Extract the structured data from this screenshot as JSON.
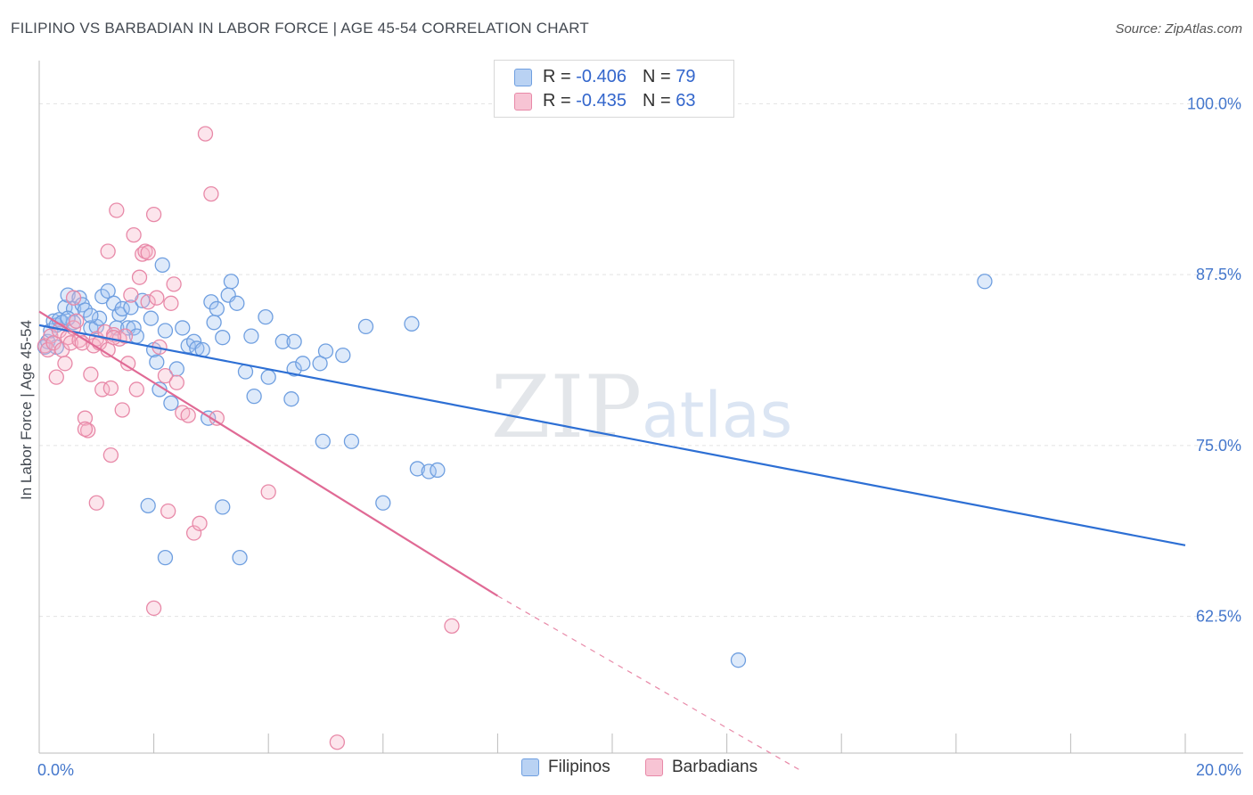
{
  "chart_data": {
    "type": "scatter",
    "title": "FILIPINO VS BARBADIAN IN LABOR FORCE | AGE 45-54 CORRELATION CHART",
    "source": "Source: ZipAtlas.com",
    "ylabel": "In Labor Force | Age 45-54",
    "xlabel": "",
    "xlim": [
      0,
      20
    ],
    "ylim": [
      52.5,
      102.5
    ],
    "x_tick_labels": [
      "0.0%",
      "20.0%"
    ],
    "y_ticks": [
      62.5,
      75.0,
      87.5,
      100.0
    ],
    "y_tick_labels": [
      "62.5%",
      "75.0%",
      "87.5%",
      "100.0%"
    ],
    "watermark": "ZIPatlas",
    "legend": [
      {
        "name": "Filipinos",
        "r_label": "R = ",
        "r": "-0.406",
        "n_label": "N = ",
        "n": "79",
        "color": "#6f9fe0",
        "fill": "#b9d2f3"
      },
      {
        "name": "Barbadians",
        "r_label": "R = ",
        "r": "-0.435",
        "n_label": "N = ",
        "n": "63",
        "color": "#e889a8",
        "fill": "#f7c4d4"
      }
    ],
    "series": [
      {
        "name": "Filipinos",
        "color": "#6f9fe0",
        "points": [
          [
            0.1,
            82.2
          ],
          [
            0.15,
            82.6
          ],
          [
            0.2,
            83.4
          ],
          [
            0.25,
            84.1
          ],
          [
            0.3,
            83.8
          ],
          [
            0.35,
            84.2
          ],
          [
            0.4,
            84.0
          ],
          [
            0.45,
            85.1
          ],
          [
            0.5,
            86.0
          ],
          [
            0.6,
            85.0
          ],
          [
            0.7,
            85.8
          ],
          [
            0.75,
            85.3
          ],
          [
            0.8,
            84.9
          ],
          [
            0.9,
            83.6
          ],
          [
            1.0,
            83.7
          ],
          [
            1.05,
            84.3
          ],
          [
            1.1,
            85.9
          ],
          [
            1.2,
            86.3
          ],
          [
            1.3,
            85.4
          ],
          [
            1.35,
            83.6
          ],
          [
            1.4,
            84.6
          ],
          [
            1.45,
            85.0
          ],
          [
            1.55,
            83.6
          ],
          [
            1.6,
            85.1
          ],
          [
            1.65,
            83.6
          ],
          [
            1.7,
            83.0
          ],
          [
            1.8,
            85.6
          ],
          [
            1.95,
            84.3
          ],
          [
            2.0,
            82.0
          ],
          [
            2.05,
            81.1
          ],
          [
            2.1,
            79.1
          ],
          [
            2.15,
            88.2
          ],
          [
            2.2,
            83.4
          ],
          [
            2.3,
            78.1
          ],
          [
            2.4,
            80.6
          ],
          [
            2.5,
            83.6
          ],
          [
            2.6,
            82.3
          ],
          [
            2.7,
            82.6
          ],
          [
            2.75,
            82.1
          ],
          [
            2.85,
            82.0
          ],
          [
            2.95,
            77.0
          ],
          [
            3.0,
            85.5
          ],
          [
            3.05,
            84.0
          ],
          [
            3.1,
            85.0
          ],
          [
            3.2,
            82.9
          ],
          [
            3.3,
            86.0
          ],
          [
            3.35,
            87.0
          ],
          [
            3.45,
            85.4
          ],
          [
            3.5,
            66.8
          ],
          [
            3.6,
            80.4
          ],
          [
            3.7,
            83.0
          ],
          [
            3.75,
            78.6
          ],
          [
            3.95,
            84.4
          ],
          [
            4.0,
            80.0
          ],
          [
            4.25,
            82.6
          ],
          [
            4.4,
            78.4
          ],
          [
            4.45,
            80.6
          ],
          [
            4.45,
            82.6
          ],
          [
            4.6,
            81.0
          ],
          [
            4.9,
            81.0
          ],
          [
            4.95,
            75.3
          ],
          [
            5.0,
            81.9
          ],
          [
            5.3,
            81.6
          ],
          [
            5.45,
            75.3
          ],
          [
            5.7,
            83.7
          ],
          [
            6.0,
            70.8
          ],
          [
            6.5,
            83.9
          ],
          [
            6.6,
            73.3
          ],
          [
            6.8,
            73.1
          ],
          [
            6.95,
            73.2
          ],
          [
            1.9,
            70.6
          ],
          [
            2.2,
            66.8
          ],
          [
            3.2,
            70.5
          ],
          [
            12.2,
            59.3
          ],
          [
            16.5,
            87.0
          ],
          [
            0.6,
            84.0
          ],
          [
            0.9,
            84.5
          ],
          [
            0.5,
            84.3
          ],
          [
            0.3,
            82.2
          ]
        ]
      },
      {
        "name": "Barbadians",
        "color": "#e889a8",
        "points": [
          [
            0.1,
            82.3
          ],
          [
            0.15,
            82.0
          ],
          [
            0.2,
            83.0
          ],
          [
            0.25,
            82.5
          ],
          [
            0.3,
            80.0
          ],
          [
            0.35,
            83.4
          ],
          [
            0.4,
            82.0
          ],
          [
            0.45,
            81.0
          ],
          [
            0.5,
            82.9
          ],
          [
            0.55,
            82.5
          ],
          [
            0.6,
            83.6
          ],
          [
            0.65,
            84.1
          ],
          [
            0.7,
            82.7
          ],
          [
            0.75,
            82.5
          ],
          [
            0.8,
            77.0
          ],
          [
            0.85,
            76.1
          ],
          [
            0.9,
            80.2
          ],
          [
            0.95,
            82.3
          ],
          [
            1.0,
            82.8
          ],
          [
            1.05,
            82.5
          ],
          [
            1.1,
            79.1
          ],
          [
            1.15,
            83.3
          ],
          [
            1.2,
            82.0
          ],
          [
            1.25,
            74.3
          ],
          [
            1.3,
            83.1
          ],
          [
            1.35,
            92.2
          ],
          [
            1.4,
            82.8
          ],
          [
            1.45,
            77.6
          ],
          [
            1.5,
            83.0
          ],
          [
            1.55,
            81.0
          ],
          [
            1.6,
            86.0
          ],
          [
            1.65,
            90.4
          ],
          [
            1.7,
            79.1
          ],
          [
            1.75,
            87.3
          ],
          [
            1.8,
            89.0
          ],
          [
            1.85,
            89.2
          ],
          [
            1.9,
            85.5
          ],
          [
            2.0,
            91.9
          ],
          [
            2.05,
            85.8
          ],
          [
            2.1,
            82.2
          ],
          [
            2.2,
            80.1
          ],
          [
            2.25,
            70.2
          ],
          [
            2.3,
            85.4
          ],
          [
            2.35,
            86.8
          ],
          [
            2.4,
            79.6
          ],
          [
            2.5,
            77.4
          ],
          [
            2.6,
            77.2
          ],
          [
            2.7,
            68.6
          ],
          [
            2.8,
            69.3
          ],
          [
            2.9,
            97.8
          ],
          [
            3.0,
            93.4
          ],
          [
            3.1,
            77.0
          ],
          [
            4.0,
            71.6
          ],
          [
            1.2,
            89.2
          ],
          [
            1.25,
            79.2
          ],
          [
            1.0,
            70.8
          ],
          [
            2.0,
            63.1
          ],
          [
            5.2,
            53.3
          ],
          [
            7.2,
            61.8
          ],
          [
            0.8,
            76.2
          ],
          [
            0.6,
            85.8
          ],
          [
            1.3,
            82.9
          ],
          [
            1.9,
            89.1
          ]
        ]
      }
    ],
    "trend_lines": [
      {
        "series": "Filipinos",
        "x": [
          0.0,
          20.0
        ],
        "y": [
          83.8,
          67.7
        ],
        "dashed_from": null
      },
      {
        "series": "Barbadians",
        "x": [
          0.0,
          8.0
        ],
        "y": [
          84.8,
          64.0
        ],
        "dash_extension_to": [
          13.3,
          51.2
        ]
      }
    ]
  }
}
